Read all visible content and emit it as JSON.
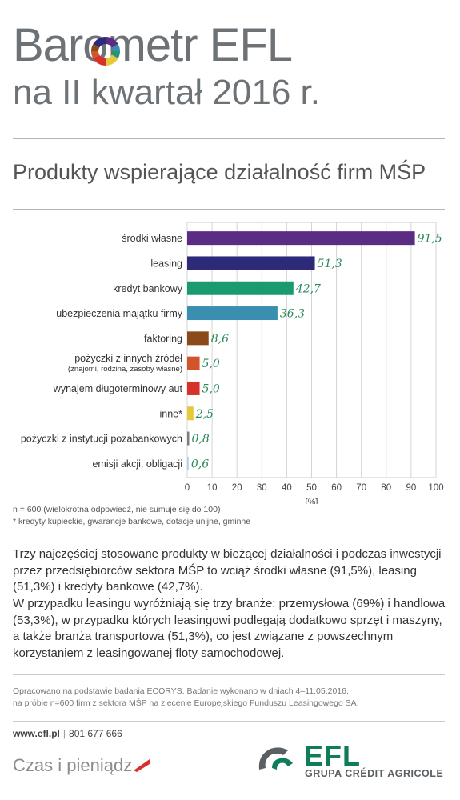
{
  "header": {
    "title_line1": "Barometr EFL",
    "title_line2": "na II kwartał 2016 r."
  },
  "subtitle": "Produkty wspierające działalność firm MŚP",
  "chart_data": {
    "type": "bar",
    "orientation": "horizontal",
    "title": "Produkty wspierające działalność firm MŚP",
    "xlabel": "[%]",
    "xlim": [
      0,
      100
    ],
    "xticks": [
      0,
      10,
      20,
      30,
      40,
      50,
      60,
      70,
      80,
      90,
      100
    ],
    "grid": true,
    "categories": [
      {
        "label": "środki własne",
        "sublabel": "",
        "value": 91.5,
        "value_label": "91,5",
        "color": "#5b2c83"
      },
      {
        "label": "leasing",
        "sublabel": "",
        "value": 51.3,
        "value_label": "51,3",
        "color": "#2e2a7a"
      },
      {
        "label": "kredyt bankowy",
        "sublabel": "",
        "value": 42.7,
        "value_label": "42,7",
        "color": "#1b9a72"
      },
      {
        "label": "ubezpieczenia majątku firmy",
        "sublabel": "",
        "value": 36.3,
        "value_label": "36,3",
        "color": "#3a8fb0"
      },
      {
        "label": "faktoring",
        "sublabel": "",
        "value": 8.6,
        "value_label": "8,6",
        "color": "#8a4a1c"
      },
      {
        "label": "pożyczki z innych źródeł",
        "sublabel": "(znajomi, rodzina, zasoby własne)",
        "value": 5.0,
        "value_label": "5,0",
        "color": "#d2542b"
      },
      {
        "label": "wynajem długoterminowy aut",
        "sublabel": "",
        "value": 5.0,
        "value_label": "5,0",
        "color": "#d6322a"
      },
      {
        "label": "inne*",
        "sublabel": "",
        "value": 2.5,
        "value_label": "2,5",
        "color": "#e6c83a"
      },
      {
        "label": "pożyczki z instytucji pozabankowych",
        "sublabel": "",
        "value": 0.8,
        "value_label": "0,8",
        "color": "#7a7f86"
      },
      {
        "label": "emisji akcji, obligacji",
        "sublabel": "",
        "value": 0.6,
        "value_label": "0,6",
        "color": "#a8d7ec"
      }
    ],
    "value_label_color": "#2a8a5a"
  },
  "notes": {
    "line1": "n = 600 (wielokrotna odpowiedź, nie sumuje się do 100)",
    "line2": "* kredyty kupieckie, gwarancje bankowe, dotacje unijne, gminne"
  },
  "paragraphs": {
    "p1": "Trzy najczęściej stosowane produkty w bieżącej działalności i podczas inwestycji przez przedsiębiorców sektora MŚP to wciąż środki własne (91,5%), leasing (51,3%) i kredyty bankowe (42,7%).",
    "p2": "W przypadku leasingu wyróżniają się trzy branże: przemysłowa (69%) i handlowa (53,3%), w przypadku których leasingowi podlegają dodatkowo sprzęt i maszyny, a także branża transportowa (51,3%), co jest związane z powszechnym korzystaniem z leasingowanej floty samochodowej."
  },
  "source": {
    "line1": "Opracowano na podstawie badania ECORYS. Badanie wykonano w dniach 4–11.05.2016,",
    "line2": "na próbie n=600 firm z sektora MŚP na zlecenie Europejskiego Funduszu Leasingowego SA."
  },
  "footer": {
    "website": "www.efl.pl",
    "phone": "801 677 666",
    "slogan": "Czas i pieniądz",
    "brand": "EFL",
    "brand_sub": "GRUPA CRÉDIT AGRICOLE"
  },
  "colors": {
    "brand_green": "#0f7d5a",
    "gray_title": "#6c7276"
  }
}
